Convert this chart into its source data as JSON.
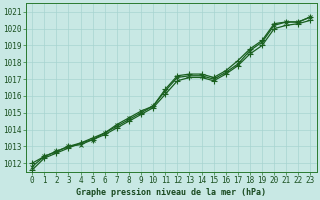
{
  "xlabel_bottom": "Graphe pression niveau de la mer (hPa)",
  "x_ticks": [
    0,
    1,
    2,
    3,
    4,
    5,
    6,
    7,
    8,
    9,
    10,
    11,
    12,
    13,
    14,
    15,
    16,
    17,
    18,
    19,
    20,
    21,
    22,
    23
  ],
  "ylim": [
    1011.5,
    1021.5
  ],
  "xlim": [
    -0.5,
    23.5
  ],
  "yticks": [
    1012,
    1013,
    1014,
    1015,
    1016,
    1017,
    1018,
    1019,
    1020,
    1021
  ],
  "bg_color": "#c8e8e4",
  "grid_color": "#a8d4d0",
  "line_color": "#1a6020",
  "line1": [
    1012.0,
    1012.4,
    1012.7,
    1013.0,
    1013.2,
    1013.5,
    1013.8,
    1014.2,
    1014.6,
    1015.0,
    1015.4,
    1016.4,
    1017.2,
    1017.3,
    1017.3,
    1017.1,
    1017.5,
    1018.1,
    1018.8,
    1019.3,
    1020.3,
    1020.4,
    1020.4,
    1020.7
  ],
  "line2": [
    1011.8,
    1012.4,
    1012.7,
    1013.0,
    1013.1,
    1013.4,
    1013.8,
    1014.3,
    1014.7,
    1015.1,
    1015.4,
    1016.3,
    1017.1,
    1017.2,
    1017.2,
    1017.0,
    1017.4,
    1017.9,
    1018.7,
    1019.2,
    1020.2,
    1020.4,
    1020.4,
    1020.7
  ],
  "line3": [
    1011.6,
    1012.3,
    1012.6,
    1012.9,
    1013.2,
    1013.4,
    1013.7,
    1014.1,
    1014.5,
    1014.9,
    1015.3,
    1016.1,
    1016.9,
    1017.1,
    1017.1,
    1016.9,
    1017.3,
    1017.8,
    1018.5,
    1019.0,
    1020.0,
    1020.2,
    1020.3,
    1020.5
  ],
  "tick_fontsize": 5.5,
  "label_fontsize": 6.0,
  "linewidth": 0.9,
  "markersize": 2.5
}
